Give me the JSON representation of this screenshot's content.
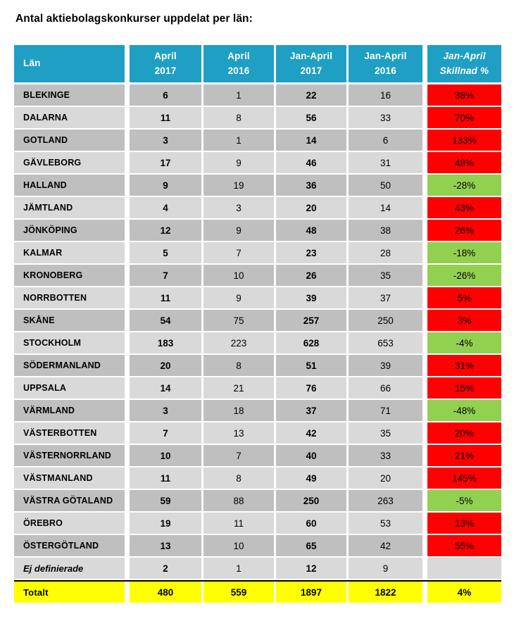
{
  "title": "Antal aktiebolagskonkurser uppdelat per län:",
  "colors": {
    "header_blue": "#1f9fc4",
    "row_dark_gray": "#bfbfbf",
    "row_light_gray": "#d9d9d9",
    "increase_red": "#ff0000",
    "decrease_green": "#92d050",
    "total_yellow": "#ffff00"
  },
  "table": {
    "header": {
      "lan": "Län",
      "cols": [
        {
          "l1": "April",
          "l2": "2017"
        },
        {
          "l1": "April",
          "l2": "2016"
        },
        {
          "l1": "Jan-April",
          "l2": "2017"
        },
        {
          "l1": "Jan-April",
          "l2": "2016"
        },
        {
          "l1": "Jan-April",
          "l2": "Skillnad %"
        }
      ]
    },
    "rows": [
      {
        "name": "BLEKINGE",
        "apr2017": "6",
        "apr2016": "1",
        "jan_apr2017": "22",
        "jan_apr2016": "16",
        "diff": "38%",
        "change": "up"
      },
      {
        "name": "DALARNA",
        "apr2017": "11",
        "apr2016": "8",
        "jan_apr2017": "56",
        "jan_apr2016": "33",
        "diff": "70%",
        "change": "up"
      },
      {
        "name": "GOTLAND",
        "apr2017": "3",
        "apr2016": "1",
        "jan_apr2017": "14",
        "jan_apr2016": "6",
        "diff": "133%",
        "change": "up"
      },
      {
        "name": "GÄVLEBORG",
        "apr2017": "17",
        "apr2016": "9",
        "jan_apr2017": "46",
        "jan_apr2016": "31",
        "diff": "48%",
        "change": "up"
      },
      {
        "name": "HALLAND",
        "apr2017": "9",
        "apr2016": "19",
        "jan_apr2017": "36",
        "jan_apr2016": "50",
        "diff": "-28%",
        "change": "down"
      },
      {
        "name": "JÄMTLAND",
        "apr2017": "4",
        "apr2016": "3",
        "jan_apr2017": "20",
        "jan_apr2016": "14",
        "diff": "43%",
        "change": "up"
      },
      {
        "name": "JÖNKÖPING",
        "apr2017": "12",
        "apr2016": "9",
        "jan_apr2017": "48",
        "jan_apr2016": "38",
        "diff": "26%",
        "change": "up"
      },
      {
        "name": "KALMAR",
        "apr2017": "5",
        "apr2016": "7",
        "jan_apr2017": "23",
        "jan_apr2016": "28",
        "diff": "-18%",
        "change": "down"
      },
      {
        "name": "KRONOBERG",
        "apr2017": "7",
        "apr2016": "10",
        "jan_apr2017": "26",
        "jan_apr2016": "35",
        "diff": "-26%",
        "change": "down"
      },
      {
        "name": "NORRBOTTEN",
        "apr2017": "11",
        "apr2016": "9",
        "jan_apr2017": "39",
        "jan_apr2016": "37",
        "diff": "5%",
        "change": "up"
      },
      {
        "name": "SKÅNE",
        "apr2017": "54",
        "apr2016": "75",
        "jan_apr2017": "257",
        "jan_apr2016": "250",
        "diff": "3%",
        "change": "up"
      },
      {
        "name": "STOCKHOLM",
        "apr2017": "183",
        "apr2016": "223",
        "jan_apr2017": "628",
        "jan_apr2016": "653",
        "diff": "-4%",
        "change": "down"
      },
      {
        "name": "SÖDERMANLAND",
        "apr2017": "20",
        "apr2016": "8",
        "jan_apr2017": "51",
        "jan_apr2016": "39",
        "diff": "31%",
        "change": "up"
      },
      {
        "name": "UPPSALA",
        "apr2017": "14",
        "apr2016": "21",
        "jan_apr2017": "76",
        "jan_apr2016": "66",
        "diff": "15%",
        "change": "up"
      },
      {
        "name": "VÄRMLAND",
        "apr2017": "3",
        "apr2016": "18",
        "jan_apr2017": "37",
        "jan_apr2016": "71",
        "diff": "-48%",
        "change": "down"
      },
      {
        "name": "VÄSTERBOTTEN",
        "apr2017": "7",
        "apr2016": "13",
        "jan_apr2017": "42",
        "jan_apr2016": "35",
        "diff": "20%",
        "change": "up"
      },
      {
        "name": "VÄSTERNORRLAND",
        "apr2017": "10",
        "apr2016": "7",
        "jan_apr2017": "40",
        "jan_apr2016": "33",
        "diff": "21%",
        "change": "up"
      },
      {
        "name": "VÄSTMANLAND",
        "apr2017": "11",
        "apr2016": "8",
        "jan_apr2017": "49",
        "jan_apr2016": "20",
        "diff": "145%",
        "change": "up"
      },
      {
        "name": "VÄSTRA GÖTALAND",
        "apr2017": "59",
        "apr2016": "88",
        "jan_apr2017": "250",
        "jan_apr2016": "263",
        "diff": "-5%",
        "change": "down"
      },
      {
        "name": "ÖREBRO",
        "apr2017": "19",
        "apr2016": "11",
        "jan_apr2017": "60",
        "jan_apr2016": "53",
        "diff": "13%",
        "change": "up"
      },
      {
        "name": "ÖSTERGÖTLAND",
        "apr2017": "13",
        "apr2016": "10",
        "jan_apr2017": "65",
        "jan_apr2016": "42",
        "diff": "55%",
        "change": "up"
      },
      {
        "name": "Ej definierade",
        "apr2017": "2",
        "apr2016": "1",
        "jan_apr2017": "12",
        "jan_apr2016": "9",
        "diff": "",
        "change": "none",
        "italic": true
      }
    ],
    "total": {
      "label": "Totalt",
      "apr2017": "480",
      "apr2016": "559",
      "jan_apr2017": "1897",
      "jan_apr2016": "1822",
      "diff": "4%"
    }
  }
}
